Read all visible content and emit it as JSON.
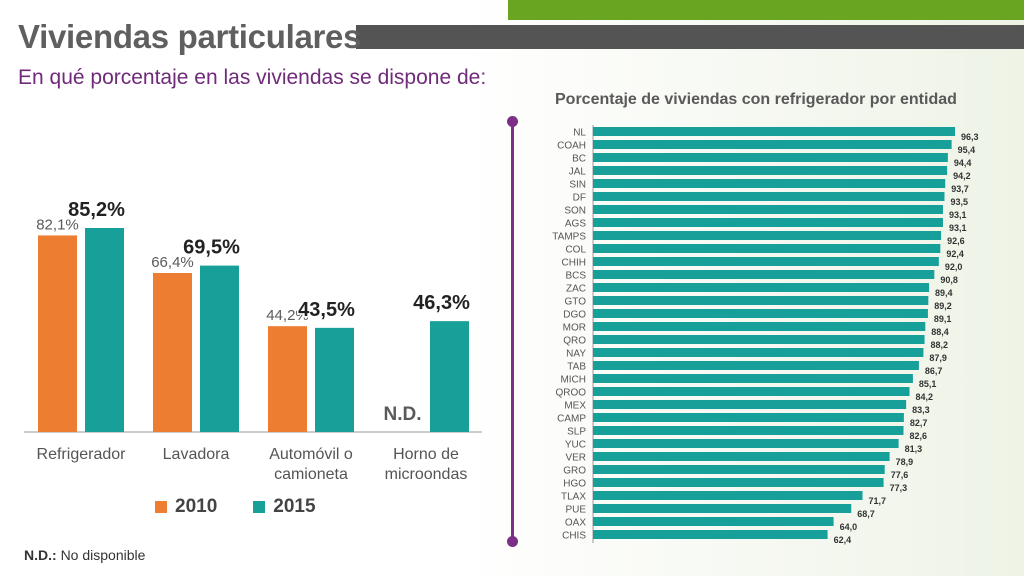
{
  "header": {
    "title": "Viviendas particulares",
    "subtitle": "En qué porcentaje en las viviendas se dispone de:"
  },
  "colors": {
    "series_2010": "#ed7d31",
    "series_2015": "#17a09a",
    "accent_purple": "#7b2f87",
    "title_gray": "#5f5f5f",
    "top_green": "#6aa521",
    "title_bar": "#545454"
  },
  "footnote": {
    "key": "N.D.:",
    "text": "No disponible"
  },
  "chart_data": [
    {
      "type": "bar",
      "title": "",
      "categories": [
        "Refrigerador",
        "Lavadora",
        "Automóvil o camioneta",
        "Horno de microondas"
      ],
      "category_lines": [
        [
          "Refrigerador"
        ],
        [
          "Lavadora"
        ],
        [
          "Automóvil o",
          "camioneta"
        ],
        [
          "Horno de",
          "microondas"
        ]
      ],
      "series": [
        {
          "name": "2010",
          "values": [
            82.1,
            66.4,
            44.2,
            null
          ],
          "labels": [
            "82,1%",
            "66,4%",
            "44,2%",
            "N.D."
          ]
        },
        {
          "name": "2015",
          "values": [
            85.2,
            69.5,
            43.5,
            46.3
          ],
          "labels": [
            "85,2%",
            "69,5%",
            "43,5%",
            "46,3%"
          ]
        }
      ],
      "ylim": [
        0,
        100
      ],
      "legend_position": "bottom",
      "grid": false
    },
    {
      "type": "bar",
      "orientation": "horizontal",
      "title": "Porcentaje de viviendas con refrigerador por entidad",
      "categories": [
        "NL",
        "COAH",
        "BC",
        "JAL",
        "SIN",
        "DF",
        "SON",
        "AGS",
        "TAMPS",
        "COL",
        "CHIH",
        "BCS",
        "ZAC",
        "GTO",
        "DGO",
        "MOR",
        "QRO",
        "NAY",
        "TAB",
        "MICH",
        "QROO",
        "MEX",
        "CAMP",
        "SLP",
        "YUC",
        "VER",
        "GRO",
        "HGO",
        "TLAX",
        "PUE",
        "OAX",
        "CHIS"
      ],
      "values": [
        96.3,
        95.4,
        94.4,
        94.2,
        93.7,
        93.5,
        93.1,
        93.1,
        92.6,
        92.4,
        92.0,
        90.8,
        89.4,
        89.2,
        89.1,
        88.4,
        88.2,
        87.9,
        86.7,
        85.1,
        84.2,
        83.3,
        82.7,
        82.6,
        81.3,
        78.9,
        77.6,
        77.3,
        71.7,
        68.7,
        64.0,
        62.4
      ],
      "labels": [
        "96,3",
        "95,4",
        "94,4",
        "94,2",
        "93,7",
        "93,5",
        "93,1",
        "93,1",
        "92,6",
        "92,4",
        "92,0",
        "90,8",
        "89,4",
        "89,2",
        "89,1",
        "88,4",
        "88,2",
        "87,9",
        "86,7",
        "85,1",
        "84,2",
        "83,3",
        "82,7",
        "82,6",
        "81,3",
        "78,9",
        "77,6",
        "77,3",
        "71,7",
        "68,7",
        "64,0",
        "62,4"
      ],
      "xlim": [
        0,
        100
      ],
      "grid": false
    }
  ]
}
